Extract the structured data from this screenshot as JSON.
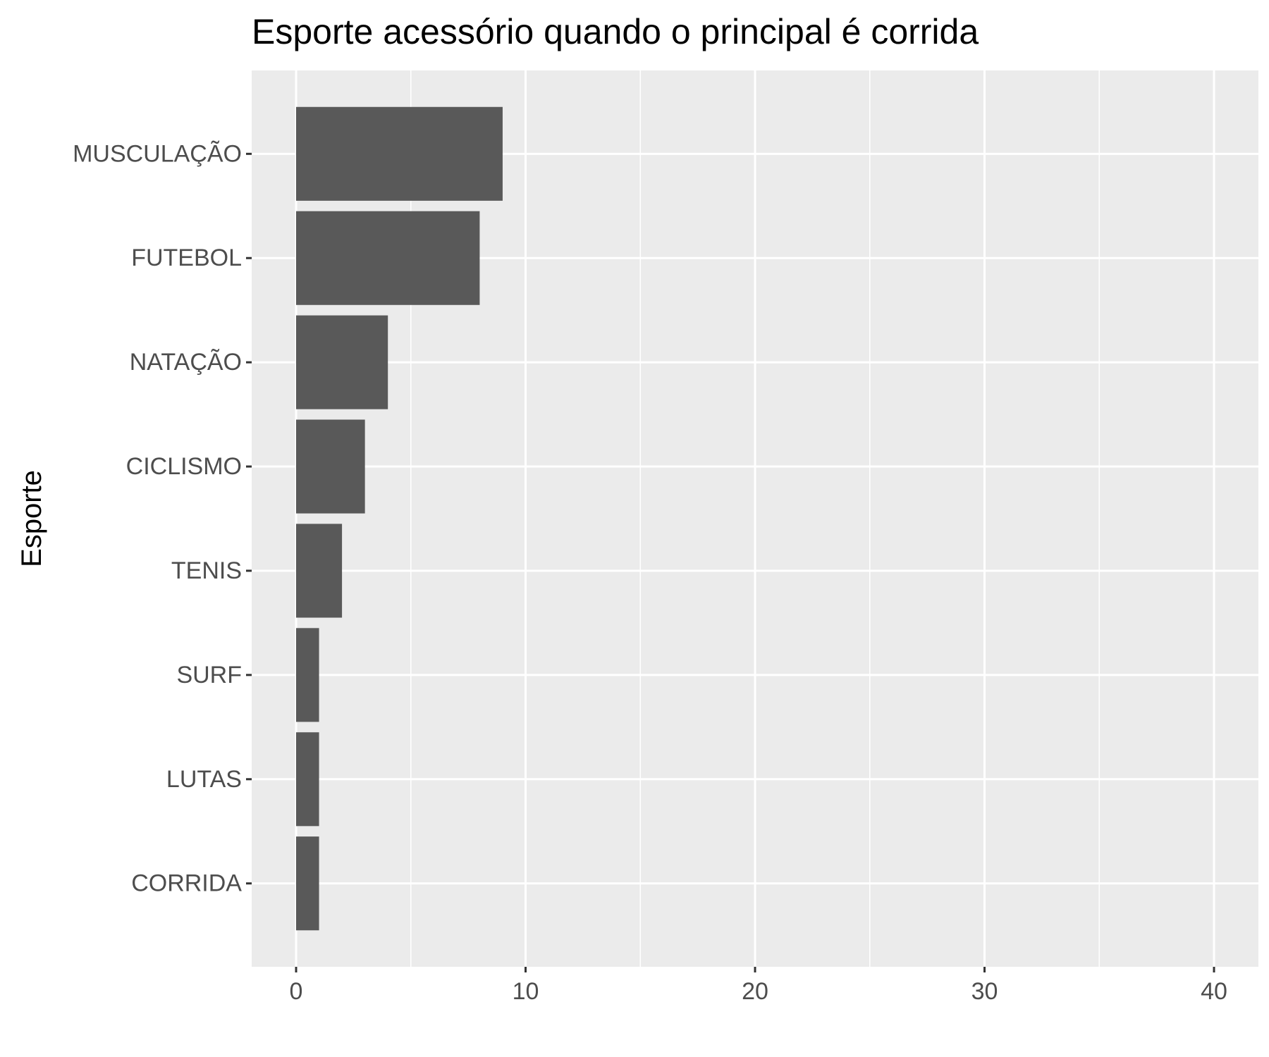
{
  "chart_data": {
    "type": "bar",
    "orientation": "horizontal",
    "title": "Esporte acessório quando o principal é corrida",
    "xlabel": "",
    "ylabel": "Esporte",
    "categories": [
      "MUSCULAÇÃO",
      "FUTEBOL",
      "NATAÇÃO",
      "CICLISMO",
      "TENIS",
      "SURF",
      "LUTAS",
      "CORRIDA"
    ],
    "values": [
      9,
      8,
      4,
      3,
      2,
      1,
      1,
      1
    ],
    "xlim": [
      0,
      40
    ],
    "x_ticks": [
      0,
      10,
      20,
      30,
      40
    ],
    "grid": true,
    "colors": {
      "panel_background": "#EBEBEB",
      "grid_line": "#FFFFFF",
      "bar_fill": "#595959",
      "tick_text": "#4D4D4D",
      "tick_mark": "#333333"
    }
  }
}
